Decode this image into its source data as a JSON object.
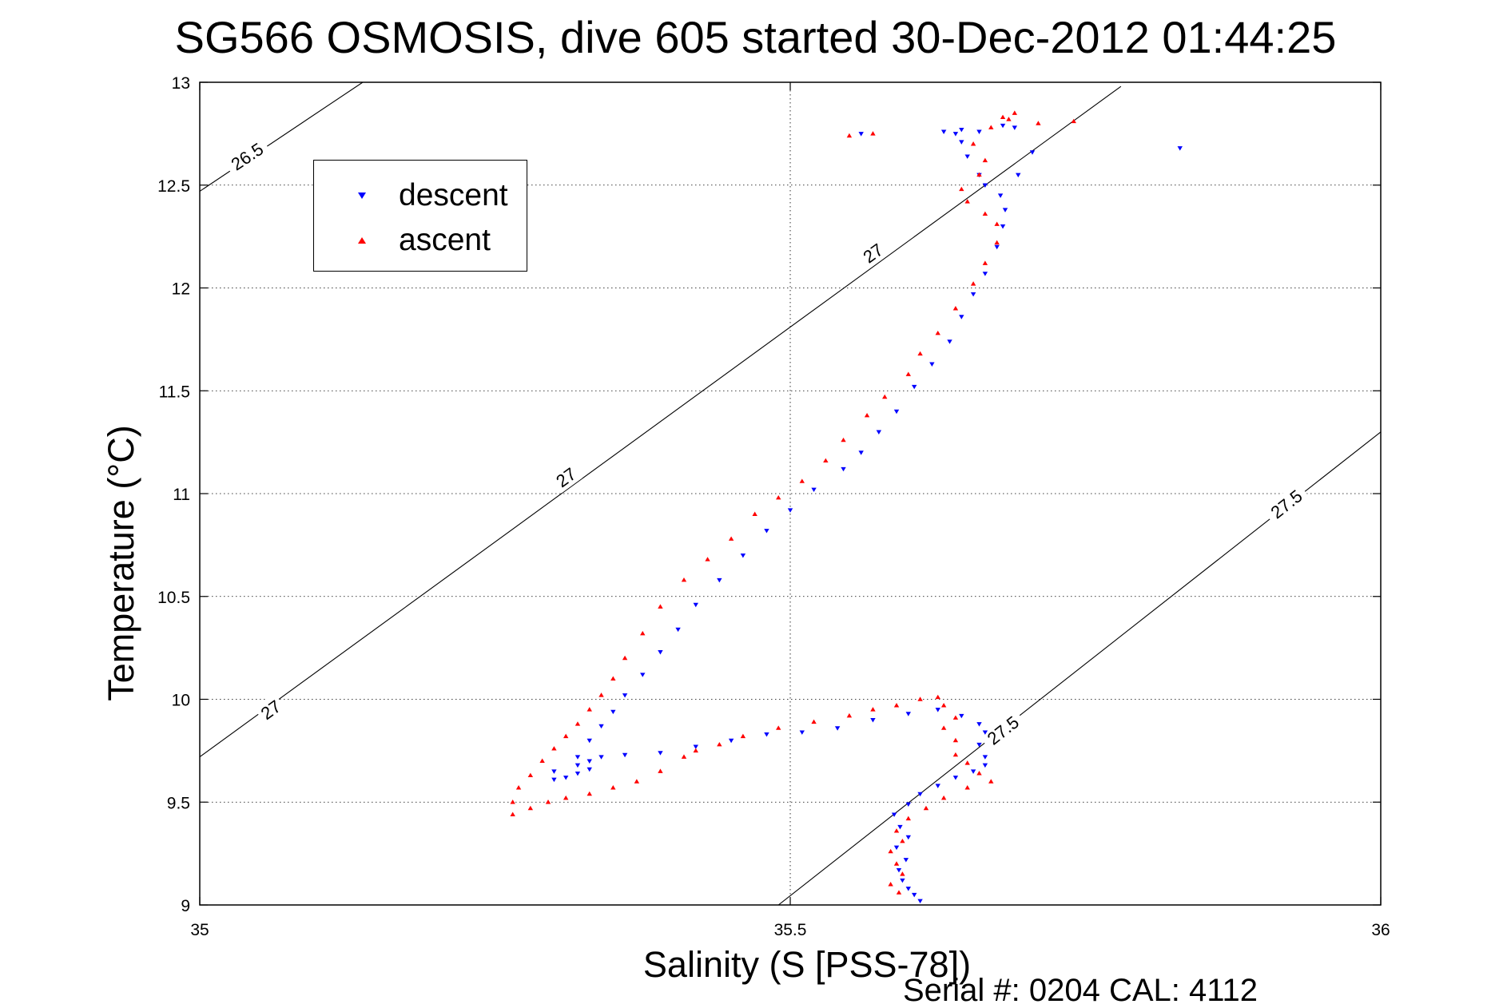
{
  "chart_data": {
    "type": "scatter",
    "title": "SG566 OSMOSIS, dive 605 started 30-Dec-2012 01:44:25",
    "xlabel": "Salinity (S [PSS-78])",
    "ylabel": "Temperature (°C)",
    "xlim": [
      35,
      36
    ],
    "ylim": [
      9,
      13
    ],
    "x_ticks": [
      "35",
      "35.5",
      "36"
    ],
    "y_ticks": [
      "9",
      "9.5",
      "10",
      "10.5",
      "11",
      "11.5",
      "12",
      "12.5",
      "13"
    ],
    "grid": true,
    "legend_position": "top-left",
    "footer": "Serial #: 0204  CAL: 4112",
    "isopycnal_contours": [
      {
        "sigma": 26.5,
        "label": "26.5",
        "points": [
          [
            35.0,
            12.47
          ],
          [
            35.138,
            13.0
          ]
        ],
        "label_at": [
          35.04,
          12.64
        ]
      },
      {
        "sigma": 27.0,
        "label": "27",
        "points": [
          [
            35.0,
            9.72
          ],
          [
            35.78,
            12.98
          ]
        ],
        "label_at": [
          [
            35.06,
            9.95
          ],
          [
            35.31,
            11.08
          ],
          [
            35.57,
            12.17
          ]
        ]
      },
      {
        "sigma": 27.5,
        "label": "27.5",
        "points": [
          [
            35.49,
            9.0
          ],
          [
            36.0,
            11.3
          ]
        ],
        "label_at": [
          [
            35.68,
            9.85
          ],
          [
            35.92,
            10.95
          ]
        ]
      }
    ],
    "series": [
      {
        "name": "descent",
        "color": "#0000ff",
        "marker": "triangle-down",
        "points": [
          [
            35.61,
            9.02
          ],
          [
            35.605,
            9.05
          ],
          [
            35.6,
            9.08
          ],
          [
            35.595,
            9.12
          ],
          [
            35.592,
            9.17
          ],
          [
            35.598,
            9.22
          ],
          [
            35.59,
            9.28
          ],
          [
            35.6,
            9.33
          ],
          [
            35.593,
            9.38
          ],
          [
            35.588,
            9.44
          ],
          [
            35.6,
            9.49
          ],
          [
            35.61,
            9.54
          ],
          [
            35.625,
            9.58
          ],
          [
            35.64,
            9.62
          ],
          [
            35.655,
            9.65
          ],
          [
            35.665,
            9.68
          ],
          [
            35.665,
            9.72
          ],
          [
            35.66,
            9.78
          ],
          [
            35.665,
            9.84
          ],
          [
            35.66,
            9.88
          ],
          [
            35.645,
            9.92
          ],
          [
            35.625,
            9.95
          ],
          [
            35.6,
            9.93
          ],
          [
            35.57,
            9.9
          ],
          [
            35.54,
            9.86
          ],
          [
            35.51,
            9.84
          ],
          [
            35.48,
            9.83
          ],
          [
            35.45,
            9.8
          ],
          [
            35.42,
            9.77
          ],
          [
            35.39,
            9.74
          ],
          [
            35.36,
            9.73
          ],
          [
            35.34,
            9.72
          ],
          [
            35.33,
            9.7
          ],
          [
            35.32,
            9.68
          ],
          [
            35.33,
            9.66
          ],
          [
            35.32,
            9.64
          ],
          [
            35.31,
            9.62
          ],
          [
            35.3,
            9.61
          ],
          [
            35.3,
            9.65
          ],
          [
            35.32,
            9.72
          ],
          [
            35.33,
            9.8
          ],
          [
            35.34,
            9.87
          ],
          [
            35.35,
            9.94
          ],
          [
            35.36,
            10.02
          ],
          [
            35.375,
            10.12
          ],
          [
            35.39,
            10.23
          ],
          [
            35.405,
            10.34
          ],
          [
            35.42,
            10.46
          ],
          [
            35.44,
            10.58
          ],
          [
            35.46,
            10.7
          ],
          [
            35.48,
            10.82
          ],
          [
            35.5,
            10.92
          ],
          [
            35.52,
            11.02
          ],
          [
            35.545,
            11.12
          ],
          [
            35.56,
            11.2
          ],
          [
            35.575,
            11.3
          ],
          [
            35.59,
            11.4
          ],
          [
            35.605,
            11.52
          ],
          [
            35.62,
            11.63
          ],
          [
            35.635,
            11.74
          ],
          [
            35.645,
            11.86
          ],
          [
            35.655,
            11.97
          ],
          [
            35.665,
            12.07
          ],
          [
            35.675,
            12.2
          ],
          [
            35.68,
            12.3
          ],
          [
            35.682,
            12.38
          ],
          [
            35.678,
            12.45
          ],
          [
            35.665,
            12.5
          ],
          [
            35.66,
            12.55
          ],
          [
            35.65,
            12.64
          ],
          [
            35.645,
            12.71
          ],
          [
            35.64,
            12.75
          ],
          [
            35.63,
            12.76
          ],
          [
            35.645,
            12.77
          ],
          [
            35.66,
            12.76
          ],
          [
            35.68,
            12.79
          ],
          [
            35.69,
            12.78
          ],
          [
            35.705,
            12.66
          ],
          [
            35.693,
            12.55
          ],
          [
            35.83,
            12.68
          ],
          [
            35.56,
            12.75
          ]
        ]
      },
      {
        "name": "ascent",
        "color": "#ff0000",
        "marker": "triangle-up",
        "points": [
          [
            35.592,
            9.06
          ],
          [
            35.585,
            9.1
          ],
          [
            35.595,
            9.15
          ],
          [
            35.59,
            9.2
          ],
          [
            35.585,
            9.26
          ],
          [
            35.595,
            9.31
          ],
          [
            35.59,
            9.36
          ],
          [
            35.6,
            9.42
          ],
          [
            35.615,
            9.47
          ],
          [
            35.63,
            9.52
          ],
          [
            35.65,
            9.57
          ],
          [
            35.67,
            9.6
          ],
          [
            35.66,
            9.64
          ],
          [
            35.65,
            9.69
          ],
          [
            35.64,
            9.73
          ],
          [
            35.64,
            9.8
          ],
          [
            35.63,
            9.86
          ],
          [
            35.64,
            9.91
          ],
          [
            35.63,
            9.97
          ],
          [
            35.625,
            10.01
          ],
          [
            35.61,
            10.0
          ],
          [
            35.59,
            9.97
          ],
          [
            35.57,
            9.95
          ],
          [
            35.55,
            9.92
          ],
          [
            35.52,
            9.89
          ],
          [
            35.49,
            9.86
          ],
          [
            35.46,
            9.82
          ],
          [
            35.44,
            9.78
          ],
          [
            35.42,
            9.75
          ],
          [
            35.41,
            9.72
          ],
          [
            35.39,
            9.65
          ],
          [
            35.37,
            9.6
          ],
          [
            35.35,
            9.57
          ],
          [
            35.33,
            9.54
          ],
          [
            35.31,
            9.52
          ],
          [
            35.295,
            9.5
          ],
          [
            35.28,
            9.47
          ],
          [
            35.265,
            9.44
          ],
          [
            35.265,
            9.5
          ],
          [
            35.27,
            9.57
          ],
          [
            35.28,
            9.63
          ],
          [
            35.29,
            9.7
          ],
          [
            35.3,
            9.76
          ],
          [
            35.31,
            9.82
          ],
          [
            35.32,
            9.88
          ],
          [
            35.33,
            9.95
          ],
          [
            35.34,
            10.02
          ],
          [
            35.35,
            10.1
          ],
          [
            35.36,
            10.2
          ],
          [
            35.375,
            10.32
          ],
          [
            35.39,
            10.45
          ],
          [
            35.41,
            10.58
          ],
          [
            35.43,
            10.68
          ],
          [
            35.45,
            10.78
          ],
          [
            35.47,
            10.9
          ],
          [
            35.49,
            10.98
          ],
          [
            35.51,
            11.06
          ],
          [
            35.53,
            11.16
          ],
          [
            35.545,
            11.26
          ],
          [
            35.565,
            11.38
          ],
          [
            35.58,
            11.47
          ],
          [
            35.6,
            11.58
          ],
          [
            35.61,
            11.68
          ],
          [
            35.625,
            11.78
          ],
          [
            35.64,
            11.9
          ],
          [
            35.655,
            12.02
          ],
          [
            35.665,
            12.12
          ],
          [
            35.675,
            12.22
          ],
          [
            35.675,
            12.31
          ],
          [
            35.665,
            12.36
          ],
          [
            35.65,
            12.42
          ],
          [
            35.645,
            12.48
          ],
          [
            35.66,
            12.55
          ],
          [
            35.665,
            12.62
          ],
          [
            35.655,
            12.7
          ],
          [
            35.67,
            12.78
          ],
          [
            35.685,
            12.82
          ],
          [
            35.69,
            12.85
          ],
          [
            35.68,
            12.83
          ],
          [
            35.71,
            12.8
          ],
          [
            35.74,
            12.81
          ],
          [
            35.57,
            12.75
          ],
          [
            35.55,
            12.74
          ]
        ]
      }
    ]
  }
}
